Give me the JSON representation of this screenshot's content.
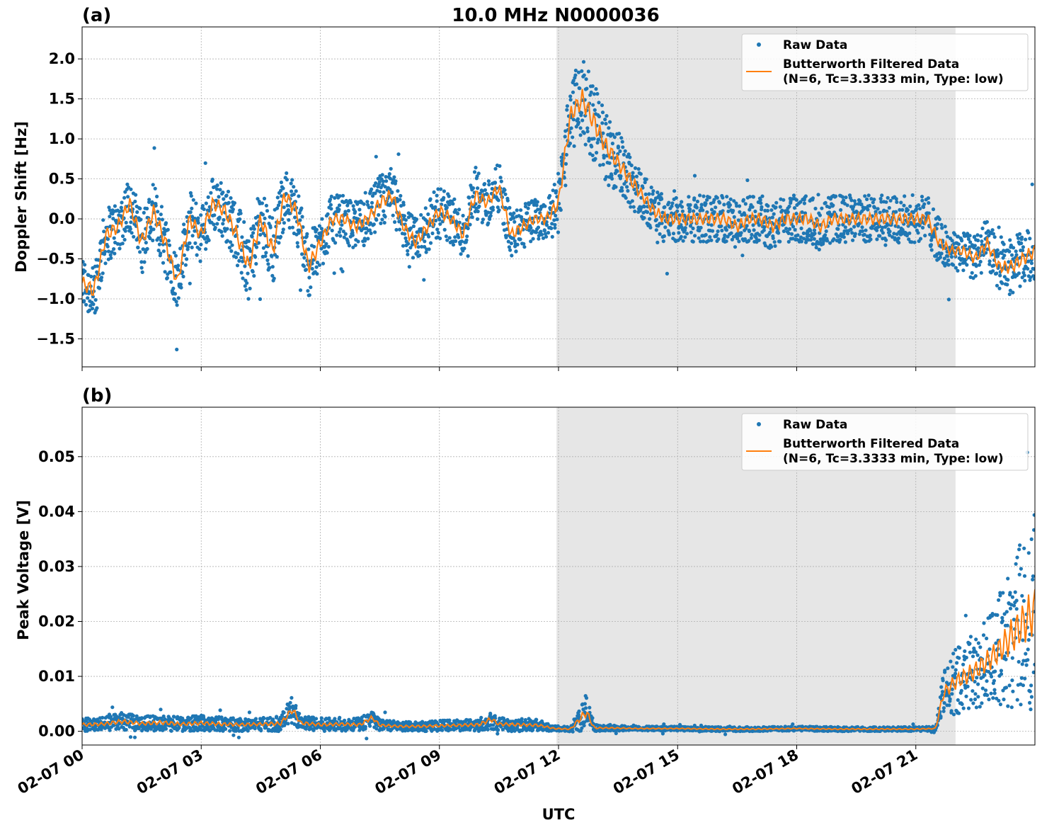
{
  "figure": {
    "title": "10.0 MHz N0000036",
    "xlabel": "UTC",
    "colors": {
      "raw": "#1f77b4",
      "filtered": "#ff7f0e",
      "shade": "#e6e6e6",
      "grid": "#b0b0b0"
    }
  },
  "legend": {
    "raw": "Raw Data",
    "filtered_line1": "Butterworth Filtered Data",
    "filtered_line2": "(N=6, Tc=3.3333 min, Type: low)"
  },
  "chart_data": [
    {
      "type": "scatter",
      "panel_label": "(a)",
      "title": "10.0 MHz N0000036",
      "xlabel": "",
      "ylabel": "Doppler Shift [Hz]",
      "xlim": [
        0,
        24
      ],
      "ylim": [
        -1.85,
        2.4
      ],
      "x_unit": "hours UTC on 02-07",
      "yticks": [
        -1.5,
        -1.0,
        -0.5,
        0.0,
        0.5,
        1.0,
        1.5,
        2.0
      ],
      "ytick_labels": [
        "−1.5",
        "−1.0",
        "−0.5",
        "0.0",
        "0.5",
        "1.0",
        "1.5",
        "2.0"
      ],
      "shaded_interval": [
        11.95,
        22.0
      ],
      "grid": true,
      "legend_position": "top-right",
      "series": [
        {
          "name": "Raw Data",
          "style": "points",
          "x": [
            0,
            0.3,
            0.6,
            0.9,
            1.2,
            1.5,
            1.8,
            2.1,
            2.4,
            2.7,
            3.0,
            3.3,
            3.6,
            3.9,
            4.2,
            4.5,
            4.8,
            5.1,
            5.4,
            5.7,
            6.0,
            6.3,
            6.6,
            6.9,
            7.2,
            7.5,
            7.8,
            8.1,
            8.4,
            8.7,
            9.0,
            9.3,
            9.6,
            9.9,
            10.2,
            10.5,
            10.8,
            11.1,
            11.4,
            11.7,
            12.0,
            12.3,
            12.6,
            12.9,
            13.2,
            13.5,
            13.8,
            14.1,
            14.4,
            14.7,
            15.0,
            15.3,
            15.6,
            15.9,
            16.2,
            16.5,
            16.8,
            17.1,
            17.4,
            17.7,
            18.0,
            18.3,
            18.6,
            18.9,
            19.2,
            19.5,
            19.8,
            20.1,
            20.4,
            20.7,
            21.0,
            21.3,
            21.6,
            21.9,
            22.2,
            22.5,
            22.8,
            23.1,
            23.4,
            23.7,
            24.0
          ],
          "y": [
            -0.8,
            -0.9,
            -0.2,
            -0.1,
            0.2,
            -0.3,
            0.1,
            -0.3,
            -0.8,
            0.0,
            -0.2,
            0.2,
            0.1,
            -0.2,
            -0.6,
            0.0,
            -0.4,
            0.3,
            0.1,
            -0.6,
            -0.3,
            0.0,
            0.0,
            -0.1,
            0.0,
            0.2,
            0.3,
            -0.1,
            -0.3,
            -0.1,
            0.1,
            0.0,
            -0.2,
            0.3,
            0.2,
            0.4,
            -0.2,
            -0.1,
            0.0,
            0.0,
            0.2,
            1.3,
            1.5,
            1.2,
            0.9,
            0.7,
            0.5,
            0.3,
            0.1,
            0.0,
            0.0,
            0.0,
            0.0,
            0.0,
            0.0,
            -0.1,
            0.0,
            0.0,
            -0.1,
            0.0,
            0.0,
            0.0,
            -0.1,
            0.0,
            0.0,
            0.0,
            0.0,
            0.0,
            0.0,
            0.0,
            0.0,
            0.0,
            -0.3,
            -0.4,
            -0.4,
            -0.5,
            -0.3,
            -0.6,
            -0.6,
            -0.5,
            -0.4
          ],
          "spread": [
            0.35,
            0.4,
            0.35,
            0.35,
            0.35,
            0.4,
            0.35,
            0.4,
            0.35,
            0.35,
            0.35,
            0.35,
            0.35,
            0.4,
            0.45,
            0.4,
            0.45,
            0.35,
            0.35,
            0.4,
            0.35,
            0.3,
            0.3,
            0.3,
            0.3,
            0.35,
            0.35,
            0.3,
            0.3,
            0.3,
            0.35,
            0.3,
            0.3,
            0.35,
            0.3,
            0.3,
            0.3,
            0.3,
            0.25,
            0.25,
            0.4,
            0.45,
            0.5,
            0.5,
            0.45,
            0.4,
            0.35,
            0.3,
            0.3,
            0.3,
            0.3,
            0.3,
            0.3,
            0.3,
            0.3,
            0.3,
            0.3,
            0.3,
            0.3,
            0.3,
            0.3,
            0.3,
            0.3,
            0.3,
            0.3,
            0.3,
            0.3,
            0.3,
            0.3,
            0.3,
            0.3,
            0.3,
            0.3,
            0.25,
            0.25,
            0.3,
            0.3,
            0.3,
            0.35,
            0.35,
            0.35
          ]
        },
        {
          "name": "Butterworth Filtered Data\n(N=6, Tc=3.3333 min, Type: low)",
          "style": "line",
          "x": [
            0,
            0.3,
            0.6,
            0.9,
            1.2,
            1.5,
            1.8,
            2.1,
            2.4,
            2.7,
            3.0,
            3.3,
            3.6,
            3.9,
            4.2,
            4.5,
            4.8,
            5.1,
            5.4,
            5.7,
            6.0,
            6.3,
            6.6,
            6.9,
            7.2,
            7.5,
            7.8,
            8.1,
            8.4,
            8.7,
            9.0,
            9.3,
            9.6,
            9.9,
            10.2,
            10.5,
            10.8,
            11.1,
            11.4,
            11.7,
            12.0,
            12.3,
            12.6,
            12.9,
            13.2,
            13.5,
            13.8,
            14.1,
            14.4,
            14.7,
            15.0,
            15.3,
            15.6,
            15.9,
            16.2,
            16.5,
            16.8,
            17.1,
            17.4,
            17.7,
            18.0,
            18.3,
            18.6,
            18.9,
            19.2,
            19.5,
            19.8,
            20.1,
            20.4,
            20.7,
            21.0,
            21.3,
            21.6,
            21.9,
            22.2,
            22.5,
            22.8,
            23.1,
            23.4,
            23.7,
            24.0
          ],
          "y": [
            -0.8,
            -0.9,
            -0.2,
            -0.1,
            0.2,
            -0.3,
            0.1,
            -0.3,
            -0.8,
            0.0,
            -0.2,
            0.2,
            0.1,
            -0.2,
            -0.6,
            0.0,
            -0.4,
            0.3,
            0.1,
            -0.6,
            -0.3,
            0.0,
            0.0,
            -0.1,
            0.0,
            0.2,
            0.3,
            -0.1,
            -0.3,
            -0.1,
            0.1,
            0.0,
            -0.2,
            0.3,
            0.2,
            0.4,
            -0.2,
            -0.1,
            0.0,
            0.0,
            0.2,
            1.3,
            1.5,
            1.2,
            0.9,
            0.7,
            0.5,
            0.3,
            0.1,
            0.0,
            0.0,
            0.0,
            0.0,
            0.0,
            0.0,
            -0.1,
            0.0,
            0.0,
            -0.1,
            0.0,
            0.0,
            0.0,
            -0.1,
            0.0,
            0.0,
            0.0,
            0.0,
            0.0,
            0.0,
            0.0,
            0.0,
            0.0,
            -0.3,
            -0.4,
            -0.4,
            -0.5,
            -0.3,
            -0.6,
            -0.6,
            -0.5,
            -0.4
          ]
        }
      ]
    },
    {
      "type": "scatter",
      "panel_label": "(b)",
      "title": "",
      "xlabel": "UTC",
      "ylabel": "Peak Voltage [V]",
      "xlim": [
        0,
        24
      ],
      "ylim": [
        -0.0025,
        0.059
      ],
      "x_unit": "hours UTC on 02-07",
      "yticks": [
        0.0,
        0.01,
        0.02,
        0.03,
        0.04,
        0.05
      ],
      "ytick_labels": [
        "0.00",
        "0.01",
        "0.02",
        "0.03",
        "0.04",
        "0.05"
      ],
      "shaded_interval": [
        11.95,
        22.0
      ],
      "grid": true,
      "legend_position": "top-right",
      "series": [
        {
          "name": "Raw Data",
          "style": "points",
          "x": [
            0,
            0.5,
            1.0,
            1.5,
            2.0,
            2.5,
            3.0,
            3.5,
            4.0,
            4.5,
            5.0,
            5.3,
            5.5,
            6.0,
            6.5,
            7.0,
            7.3,
            7.5,
            8.0,
            8.5,
            9.0,
            9.5,
            10.0,
            10.3,
            10.5,
            11.0,
            11.5,
            11.9,
            12.3,
            12.7,
            12.9,
            13.3,
            14.0,
            15.0,
            16.0,
            17.0,
            18.0,
            19.0,
            20.0,
            21.0,
            21.5,
            21.7,
            22.0,
            22.5,
            23.0,
            23.5,
            24.0
          ],
          "y": [
            0.0012,
            0.0013,
            0.0018,
            0.0014,
            0.0016,
            0.0013,
            0.0015,
            0.0013,
            0.0012,
            0.0013,
            0.0014,
            0.004,
            0.0015,
            0.0012,
            0.0013,
            0.0012,
            0.0025,
            0.0011,
            0.0009,
            0.0009,
            0.001,
            0.0011,
            0.0012,
            0.0022,
            0.0013,
            0.0012,
            0.0011,
            0.0005,
            0.0004,
            0.0035,
            0.0006,
            0.0006,
            0.0005,
            0.0005,
            0.0004,
            0.0004,
            0.0005,
            0.0004,
            0.0004,
            0.0004,
            0.0005,
            0.007,
            0.009,
            0.011,
            0.014,
            0.018,
            0.022
          ],
          "spread": [
            0.0012,
            0.0012,
            0.0016,
            0.0013,
            0.0015,
            0.0013,
            0.0014,
            0.0013,
            0.0012,
            0.0012,
            0.0014,
            0.0025,
            0.0013,
            0.0012,
            0.0012,
            0.0012,
            0.0015,
            0.001,
            0.0009,
            0.0009,
            0.001,
            0.001,
            0.0012,
            0.0018,
            0.0012,
            0.0012,
            0.001,
            0.0005,
            0.0005,
            0.0035,
            0.0006,
            0.0005,
            0.0004,
            0.0004,
            0.0004,
            0.0004,
            0.0004,
            0.0004,
            0.0004,
            0.0004,
            0.0004,
            0.004,
            0.006,
            0.007,
            0.009,
            0.014,
            0.018
          ]
        },
        {
          "name": "Butterworth Filtered Data\n(N=6, Tc=3.3333 min, Type: low)",
          "style": "line",
          "x": [
            0,
            0.5,
            1.0,
            1.5,
            2.0,
            2.5,
            3.0,
            3.5,
            4.0,
            4.5,
            5.0,
            5.3,
            5.5,
            6.0,
            6.5,
            7.0,
            7.3,
            7.5,
            8.0,
            8.5,
            9.0,
            9.5,
            10.0,
            10.3,
            10.5,
            11.0,
            11.5,
            11.9,
            12.3,
            12.7,
            12.9,
            13.3,
            14.0,
            15.0,
            16.0,
            17.0,
            18.0,
            19.0,
            20.0,
            21.0,
            21.5,
            21.7,
            22.0,
            22.5,
            23.0,
            23.5,
            24.0
          ],
          "y": [
            0.0012,
            0.0013,
            0.0018,
            0.0014,
            0.0016,
            0.0013,
            0.0015,
            0.0013,
            0.0012,
            0.0013,
            0.0014,
            0.004,
            0.0015,
            0.0012,
            0.0013,
            0.0012,
            0.0025,
            0.0011,
            0.0009,
            0.0009,
            0.001,
            0.0011,
            0.0012,
            0.0022,
            0.0013,
            0.0012,
            0.0011,
            0.0005,
            0.0004,
            0.0035,
            0.0006,
            0.0006,
            0.0005,
            0.0005,
            0.0004,
            0.0004,
            0.0005,
            0.0004,
            0.0004,
            0.0004,
            0.0005,
            0.007,
            0.009,
            0.011,
            0.014,
            0.018,
            0.022
          ]
        }
      ]
    }
  ],
  "x_axis": {
    "ticks": [
      0,
      3,
      6,
      9,
      12,
      15,
      18,
      21
    ],
    "tick_labels": [
      "02-07 00",
      "02-07 03",
      "02-07 06",
      "02-07 09",
      "02-07 12",
      "02-07 15",
      "02-07 18",
      "02-07 21"
    ]
  }
}
